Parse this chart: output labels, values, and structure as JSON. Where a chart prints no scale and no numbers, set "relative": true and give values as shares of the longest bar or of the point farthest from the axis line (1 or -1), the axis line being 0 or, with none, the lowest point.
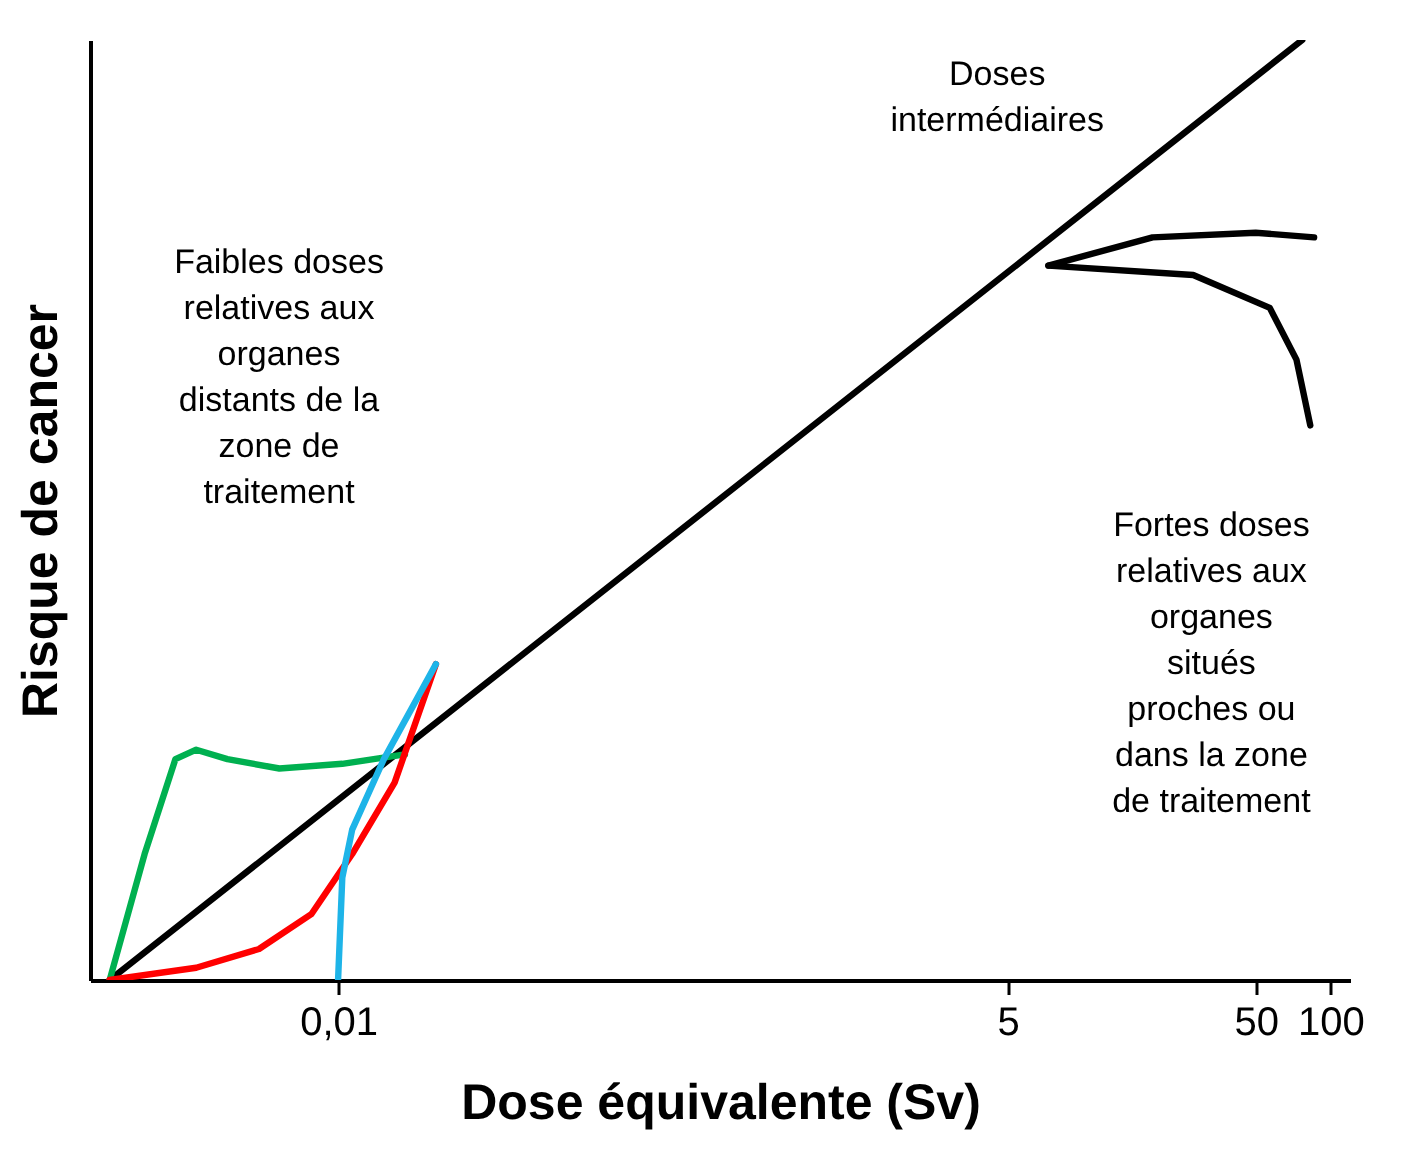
{
  "chart_data": {
    "type": "line",
    "relative": true,
    "xlabel": "Dose équivalente (Sv)",
    "ylabel": "Risque de cancer",
    "log": "x",
    "xlim": [
      0.001,
      120
    ],
    "xticks": [
      {
        "value": 0.01,
        "label": "0,01"
      },
      5,
      50,
      100
    ],
    "grid": false,
    "marker": "none",
    "line_style": "solid",
    "series": [
      {
        "color": "#000000",
        "x": [
          0.0012,
          77
        ],
        "values": [
          0,
          1
        ]
      },
      {
        "color": "#000000",
        "x": [
          7.3,
          19.2,
          50,
          86
        ],
        "values": [
          0.76,
          0.79,
          0.795,
          0.79
        ]
      },
      {
        "color": "#000000",
        "x": [
          7.3,
          28,
          57,
          73,
          83
        ],
        "values": [
          0.76,
          0.75,
          0.715,
          0.66,
          0.59
        ]
      },
      {
        "color": "#00b050",
        "x": [
          0.0012,
          0.00166,
          0.00221,
          0.00268,
          0.00358,
          0.0058,
          0.0104,
          0.0186
        ],
        "values": [
          0,
          0.134,
          0.235,
          0.245,
          0.235,
          0.225,
          0.23,
          0.24
        ]
      },
      {
        "color": "#ff0000",
        "x": [
          0.0012,
          0.00268,
          0.0048,
          0.0078,
          0.0114,
          0.0169,
          0.0248
        ],
        "values": [
          0,
          0.013,
          0.033,
          0.07,
          0.134,
          0.21,
          0.336
        ]
      },
      {
        "color": "#1eb4e8",
        "x": [
          0.01,
          0.0104,
          0.0114,
          0.0153,
          0.0248
        ],
        "values": [
          0,
          0.109,
          0.16,
          0.235,
          0.336
        ]
      }
    ],
    "annotations": [
      "Doses\nintermédiaires",
      "Faibles doses\nrelatives aux\norganes\ndistants de la\nzone de\ntraitement",
      "Fortes doses\nrelatives aux\norganes\nsitués\nproches ou\ndans la zone\nde traitement"
    ]
  }
}
